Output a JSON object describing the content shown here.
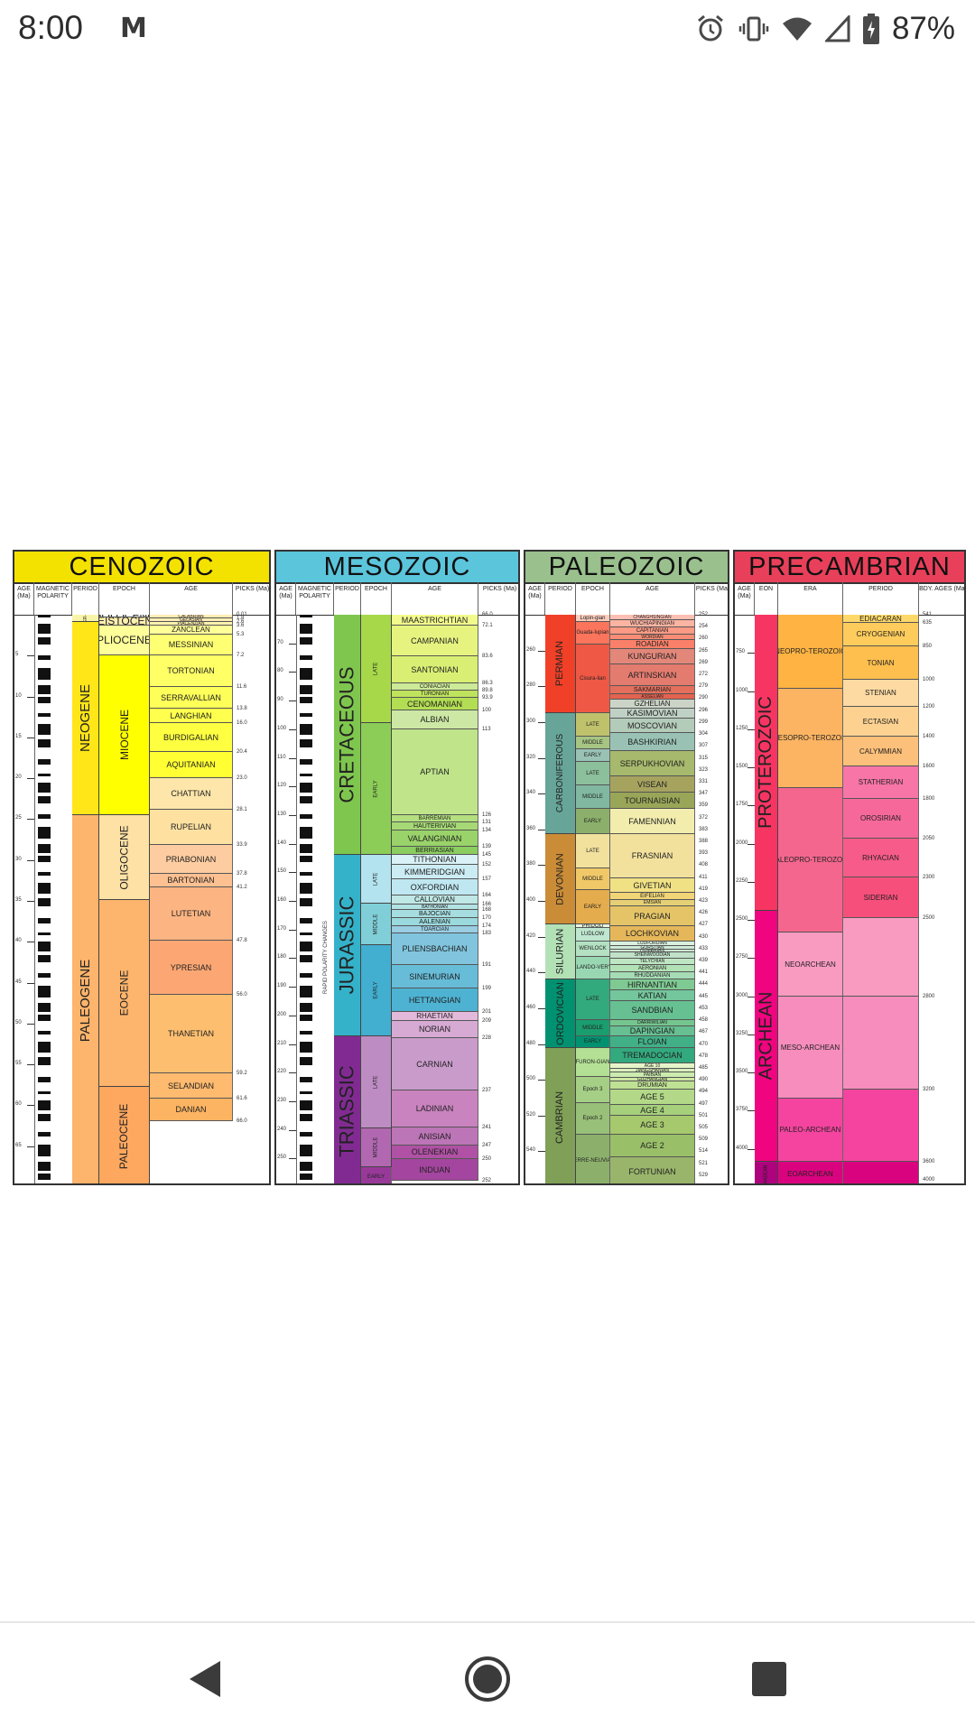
{
  "status_bar": {
    "time": "8:00",
    "notification_icon": "gmail-m-icon",
    "battery_percent": "87%",
    "icons": [
      "alarm-icon",
      "vibrate-icon",
      "wifi-icon",
      "cell-signal-icon",
      "battery-charging-icon"
    ]
  },
  "chart": {
    "panels": [
      {
        "title": "CENOZOIC",
        "color": "#f3e100",
        "columns": [
          "AGE (Ma)",
          "MAGNETIC POLARITY",
          "PERIOD",
          "EPOCH",
          "AGE",
          "PICKS (Ma)"
        ],
        "periods": [
          "QUATER-NARY",
          "NEOGENE",
          "PALEOGENE"
        ],
        "epochs": [
          "HOLOCENE",
          "PLEISTOCENE*",
          "PLIOCENE",
          "MIOCENE",
          "OLIGOCENE",
          "EOCENE",
          "PALEOCENE"
        ],
        "ages": [
          "CALABRIAN",
          "GELASIAN",
          "PIACENZIAN",
          "ZANCLEAN",
          "MESSINIAN",
          "TORTONIAN",
          "SERRAVALLIAN",
          "LANGHIAN",
          "BURDIGALIAN",
          "AQUITANIAN",
          "CHATTIAN",
          "RUPELIAN",
          "PRIABONIAN",
          "BARTONIAN",
          "LUTETIAN",
          "YPRESIAN",
          "THANETIAN",
          "SELANDIAN",
          "DANIAN"
        ],
        "picks": [
          "0.01",
          "1.8",
          "2.6",
          "3.6",
          "5.3",
          "7.2",
          "11.6",
          "13.8",
          "16.0",
          "20.4",
          "23.0",
          "28.1",
          "33.9",
          "37.8",
          "41.2",
          "47.8",
          "56.0",
          "59.2",
          "61.6",
          "66.0"
        ],
        "axis_ticks": [
          "5",
          "10",
          "15",
          "20",
          "25",
          "30",
          "35",
          "40",
          "45",
          "50",
          "55",
          "60",
          "65"
        ]
      },
      {
        "title": "MESOZOIC",
        "color": "#5bc5dc",
        "columns": [
          "AGE (Ma)",
          "MAGNETIC POLARITY",
          "PERIOD",
          "EPOCH",
          "AGE",
          "PICKS (Ma)"
        ],
        "periods": [
          "CRETACEOUS",
          "JURASSIC",
          "TRIASSIC"
        ],
        "epochs": [
          "LATE",
          "EARLY",
          "LATE",
          "MIDDLE",
          "EARLY",
          "LATE",
          "MIDDLE",
          "EARLY"
        ],
        "ages": [
          "MAASTRICHTIAN",
          "CAMPANIAN",
          "SANTONIAN",
          "CONIACIAN",
          "TURONIAN",
          "CENOMANIAN",
          "ALBIAN",
          "APTIAN",
          "BARREMIAN",
          "HAUTERIVIAN",
          "VALANGINIAN",
          "BERRIASIAN",
          "TITHONIAN",
          "KIMMERIDGIAN",
          "OXFORDIAN",
          "CALLOVIAN",
          "BATHONIAN",
          "BAJOCIAN",
          "AALENIAN",
          "TOARCIAN",
          "PLIENSBACHIAN",
          "SINEMURIAN",
          "HETTANGIAN",
          "RHAETIAN",
          "NORIAN",
          "CARNIAN",
          "LADINIAN",
          "ANISIAN",
          "OLENEKIAN",
          "INDUAN"
        ],
        "picks": [
          "66.0",
          "72.1",
          "83.6",
          "86.3",
          "89.8",
          "93.9",
          "100",
          "113",
          "126",
          "131",
          "134",
          "139",
          "145",
          "152",
          "157",
          "164",
          "166",
          "168",
          "170",
          "174",
          "183",
          "191",
          "199",
          "201",
          "209",
          "228",
          "237",
          "241",
          "247",
          "250",
          "252"
        ],
        "axis_ticks": [
          "70",
          "80",
          "90",
          "100",
          "110",
          "120",
          "130",
          "140",
          "150",
          "160",
          "170",
          "180",
          "190",
          "200",
          "210",
          "220",
          "230",
          "240",
          "250"
        ],
        "side_label": "RAPID POLARITY CHANGES"
      },
      {
        "title": "PALEOZOIC",
        "color": "#99c08d",
        "columns": [
          "AGE (Ma)",
          "PERIOD",
          "EPOCH",
          "AGE",
          "PICKS (Ma)"
        ],
        "periods": [
          "PERMIAN",
          "CARBONIFEROUS",
          "DEVONIAN",
          "SILURIAN",
          "ORDOVICIAN",
          "CAMBRIAN"
        ],
        "epochs": [
          "Lopin-gian",
          "Guada-lupian",
          "Cisura-lian",
          "LATE",
          "MIDDLE",
          "EARLY",
          "LATE",
          "MIDDLE",
          "EARLY",
          "LATE",
          "MIDDLE",
          "EARLY",
          "PRIDOLI",
          "LUDLOW",
          "WENLOCK",
          "LLANDO-VERY",
          "LATE",
          "MIDDLE",
          "EARLY",
          "FURON-GIAN",
          "Epoch 3",
          "Epoch 2",
          "TERRE-NEUVIAN"
        ],
        "ages": [
          "CHANGHSINGIAN",
          "WUCHIAPINGIAN",
          "CAPITANIAN",
          "WORDIAN",
          "ROADIAN",
          "KUNGURIAN",
          "ARTINSKIAN",
          "SAKMARIAN",
          "ASSELIAN",
          "GZHELIAN",
          "KASIMOVIAN",
          "MOSCOVIAN",
          "BASHKIRIAN",
          "SERPUKHOVIAN",
          "VISEAN",
          "TOURNAISIAN",
          "FAMENNIAN",
          "FRASNIAN",
          "GIVETIAN",
          "EIFELIAN",
          "EMSIAN",
          "PRAGIAN",
          "LOCHKOVIAN",
          "LUDFORDIAN",
          "GORSTIAN",
          "HOMERIAN",
          "SHEINWOODIAN",
          "TELYCHIAN",
          "AERONIAN",
          "RHUDDANIAN",
          "HIRNANTIAN",
          "KATIAN",
          "SANDBIAN",
          "DARRIWILIAN",
          "DAPINGIAN",
          "FLOIAN",
          "TREMADOCIAN",
          "AGE 10",
          "JIANGSHANIAN",
          "PAIBIAN",
          "GUZHANGIAN",
          "DRUMIAN",
          "AGE 5",
          "AGE 4",
          "AGE 3",
          "AGE 2",
          "FORTUNIAN"
        ],
        "picks": [
          "252",
          "254",
          "260",
          "265",
          "269",
          "272",
          "279",
          "290",
          "296",
          "299",
          "304",
          "307",
          "315",
          "323",
          "331",
          "347",
          "359",
          "372",
          "383",
          "388",
          "393",
          "408",
          "411",
          "419",
          "423",
          "426",
          "427",
          "430",
          "433",
          "439",
          "441",
          "444",
          "445",
          "453",
          "458",
          "467",
          "470",
          "478",
          "485",
          "490",
          "494",
          "497",
          "501",
          "505",
          "509",
          "514",
          "521",
          "529",
          "541"
        ],
        "axis_ticks": [
          "260",
          "280",
          "300",
          "320",
          "340",
          "360",
          "380",
          "400",
          "420",
          "440",
          "460",
          "480",
          "500",
          "520",
          "540"
        ]
      },
      {
        "title": "PRECAMBRIAN",
        "color": "#e8405a",
        "columns": [
          "AGE (Ma)",
          "EON",
          "ERA",
          "PERIOD",
          "BDY. AGES (Ma)"
        ],
        "eons": [
          "PROTEROZOIC",
          "ARCHEAN",
          "HADEAN"
        ],
        "eras": [
          "NEOPRO-TEROZOIC",
          "MESOPRO-TEROZOIC",
          "PALEOPRO-TEROZOIC",
          "NEOARCHEAN",
          "MESO-ARCHEAN",
          "PALEO-ARCHEAN",
          "EOARCHEAN"
        ],
        "periods": [
          "EDIACARAN",
          "CRYOGENIAN",
          "TONIAN",
          "STENIAN",
          "ECTASIAN",
          "CALYMMIAN",
          "STATHERIAN",
          "OROSIRIAN",
          "RHYACIAN",
          "SIDERIAN"
        ],
        "bdy_ages": [
          "541",
          "635",
          "850",
          "1000",
          "1200",
          "1400",
          "1600",
          "1800",
          "2050",
          "2300",
          "2500",
          "2800",
          "3200",
          "3600",
          "4000"
        ],
        "axis_ticks": [
          "750",
          "1000",
          "1250",
          "1500",
          "1750",
          "2000",
          "2250",
          "2500",
          "2750",
          "3000",
          "3250",
          "3500",
          "3750",
          "4000"
        ]
      }
    ]
  },
  "nav_bar": {
    "buttons": [
      "back-icon",
      "home-icon",
      "recents-icon"
    ]
  }
}
